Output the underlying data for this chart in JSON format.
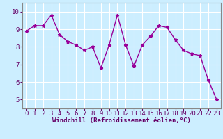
{
  "x": [
    0,
    1,
    2,
    3,
    4,
    5,
    6,
    7,
    8,
    9,
    10,
    11,
    12,
    13,
    14,
    15,
    16,
    17,
    18,
    19,
    20,
    21,
    22,
    23
  ],
  "y": [
    8.9,
    9.2,
    9.2,
    9.8,
    8.7,
    8.3,
    8.1,
    7.8,
    8.0,
    6.8,
    8.1,
    9.8,
    8.1,
    6.9,
    8.1,
    8.6,
    9.2,
    9.1,
    8.4,
    7.8,
    7.6,
    7.5,
    6.1,
    5.0
  ],
  "line_color": "#990099",
  "marker_color": "#990099",
  "bg_color": "#cceeff",
  "grid_color": "#ffffff",
  "xlabel": "Windchill (Refroidissement éolien,°C)",
  "xlabel_color": "#660066",
  "tick_color": "#660066",
  "spine_color": "#888888",
  "ylim": [
    4.5,
    10.5
  ],
  "xlim": [
    -0.5,
    23.5
  ],
  "yticks": [
    5,
    6,
    7,
    8,
    9,
    10
  ],
  "xticks": [
    0,
    1,
    2,
    3,
    4,
    5,
    6,
    7,
    8,
    9,
    10,
    11,
    12,
    13,
    14,
    15,
    16,
    17,
    18,
    19,
    20,
    21,
    22,
    23
  ],
  "marker": "*",
  "markersize": 3.5,
  "linewidth": 1.0,
  "xlabel_fontsize": 6.5,
  "tick_fontsize": 6.5
}
